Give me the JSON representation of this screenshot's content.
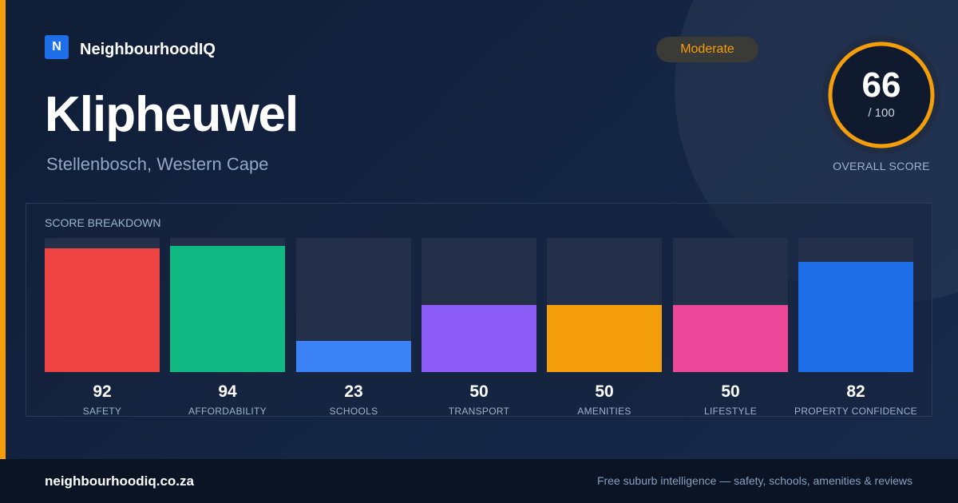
{
  "brand": {
    "logo_letter": "N",
    "name": "NeighbourhoodIQ",
    "logo_color": "#1e6ee8"
  },
  "suburb": "Klipheuwel",
  "location": "Stellenbosch, Western Cape",
  "badge": {
    "label": "Moderate",
    "color": "#f59e0b"
  },
  "overall": {
    "value": "66",
    "max": "/ 100",
    "label": "OVERALL SCORE",
    "ring_color": "#f59e0b",
    "percent": 66
  },
  "breakdown_title": "SCORE BREAKDOWN",
  "chart_data": {
    "type": "bar",
    "categories": [
      "SAFETY",
      "AFFORDABILITY",
      "SCHOOLS",
      "TRANSPORT",
      "AMENITIES",
      "LIFESTYLE",
      "PROPERTY CONFIDENCE"
    ],
    "values": [
      92,
      94,
      23,
      50,
      50,
      50,
      82
    ],
    "colors": [
      "#ef4444",
      "#10b981",
      "#3b82f6",
      "#8b5cf6",
      "#f59e0b",
      "#ec4899",
      "#1e6ee8"
    ],
    "ylim": [
      0,
      100
    ],
    "title": "SCORE BREAKDOWN",
    "xlabel": "",
    "ylabel": "",
    "grid": false,
    "legend": "none"
  },
  "footer": {
    "site": "neighbourhoodiq.co.za",
    "tagline": "Free suburb intelligence — safety, schools, amenities & reviews"
  },
  "accent_color": "#f59e0b"
}
